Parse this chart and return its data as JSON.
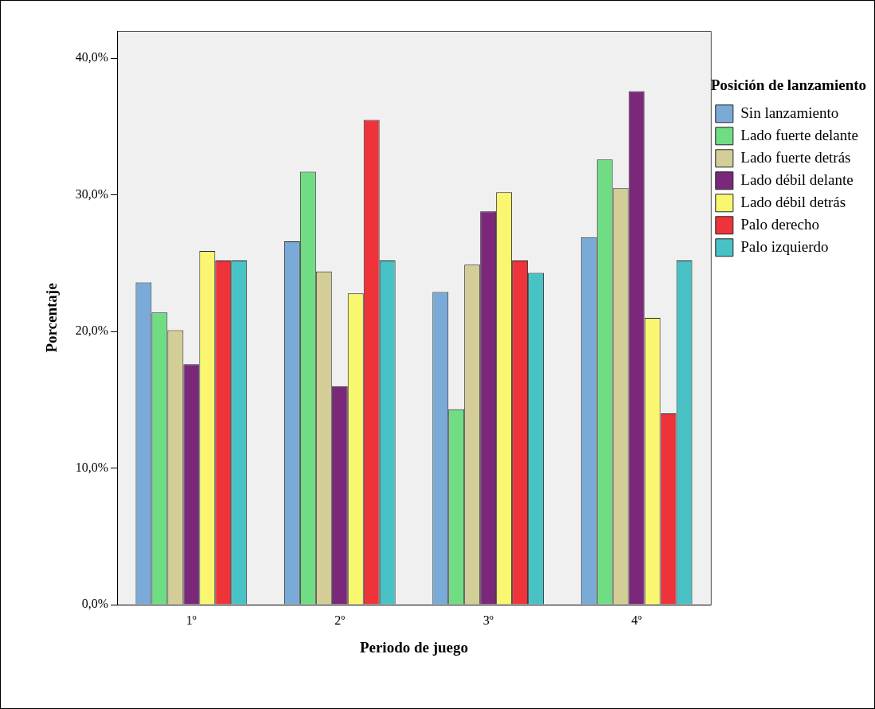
{
  "chart_data": {
    "type": "bar",
    "xlabel": "Periodo de juego",
    "ylabel": "Porcentaje",
    "legend_title": "Posición de lanzamiento",
    "legend": "top right",
    "grid": false,
    "categories": [
      "1º",
      "2º",
      "3º",
      "4º"
    ],
    "ylim": [
      0,
      42
    ],
    "yticks": [
      {
        "value": 0,
        "label": "0,0%"
      },
      {
        "value": 10,
        "label": "10,0%"
      },
      {
        "value": 20,
        "label": "20,0%"
      },
      {
        "value": 30,
        "label": "30,0%"
      },
      {
        "value": 40,
        "label": "40,0%"
      }
    ],
    "series": [
      {
        "name": "Sin lanzamiento",
        "color": "#7aaad7",
        "values": [
          23.6,
          26.6,
          22.9,
          26.9
        ]
      },
      {
        "name": "Lado fuerte delante",
        "color": "#70dc84",
        "values": [
          21.4,
          31.7,
          14.3,
          32.6
        ]
      },
      {
        "name": "Lado fuerte detrás",
        "color": "#d3ce97",
        "values": [
          20.1,
          24.4,
          24.9,
          30.5
        ]
      },
      {
        "name": "Lado débil delante",
        "color": "#7b287b",
        "values": [
          17.6,
          16.0,
          28.8,
          37.6
        ]
      },
      {
        "name": "Lado débil detrás",
        "color": "#faf670",
        "values": [
          25.9,
          22.8,
          30.2,
          21.0
        ]
      },
      {
        "name": "Palo derecho",
        "color": "#ef333b",
        "values": [
          25.2,
          35.5,
          25.2,
          14.0
        ]
      },
      {
        "name": "Palo izquierdo",
        "color": "#49c2c6",
        "values": [
          25.2,
          25.2,
          24.3,
          25.2
        ]
      }
    ]
  }
}
